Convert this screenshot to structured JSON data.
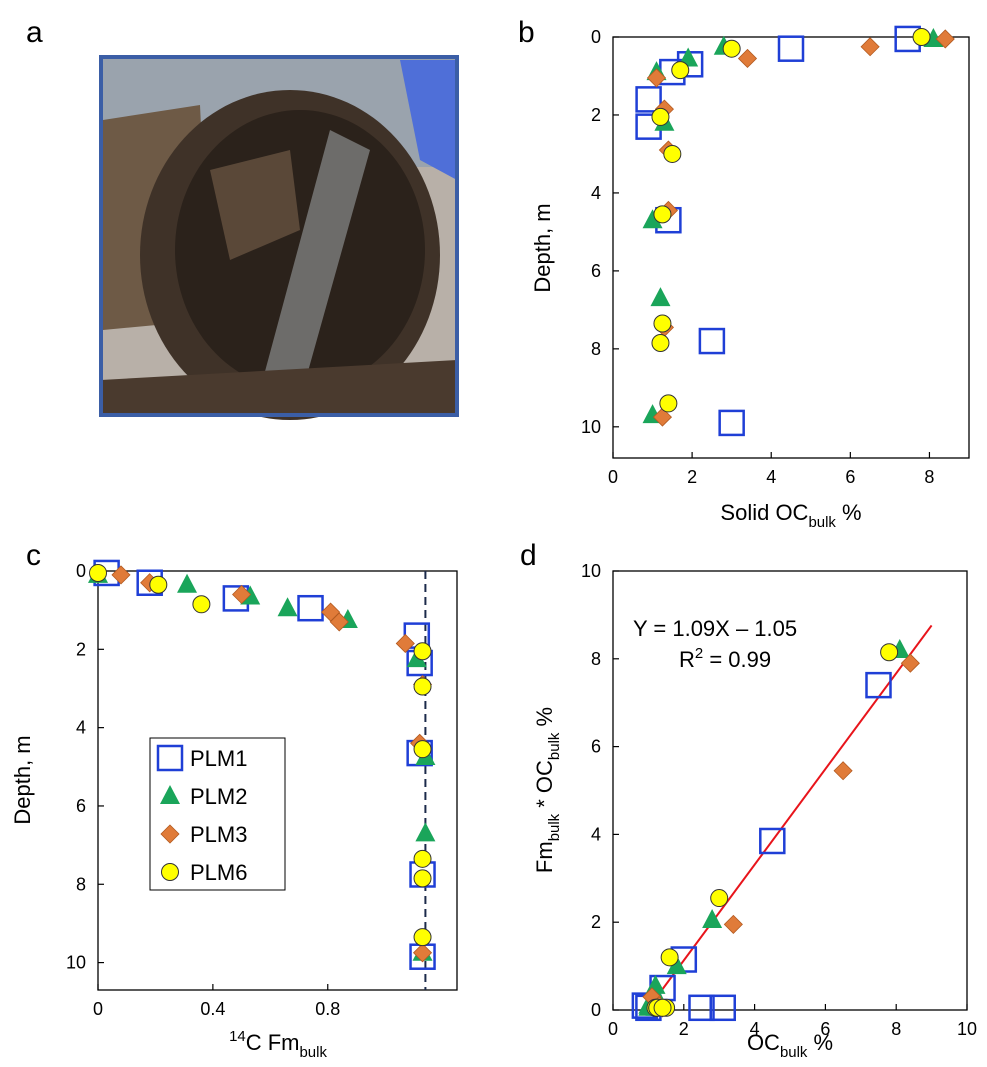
{
  "photo_panel": {
    "label": "a"
  },
  "chart_data": [
    {
      "type": "scatter",
      "label": "b",
      "x_label": [
        {
          "text": "Solid OC"
        },
        {
          "text": "bulk",
          "sub": true
        },
        {
          "text": " %"
        }
      ],
      "y_label": [
        {
          "text": "Depth, m"
        }
      ],
      "xlim": [
        0,
        9
      ],
      "xticks": [
        0,
        2,
        4,
        6,
        8
      ],
      "ylim": [
        0,
        10.8
      ],
      "yticks": [
        0,
        2,
        4,
        6,
        8,
        10
      ],
      "y_reversed": true,
      "series": [
        {
          "name": "PLM1",
          "color": "#1f3fd6",
          "marker": "square",
          "x": [
            7.45,
            4.5,
            1.5,
            1.95,
            0.9,
            0.9,
            1.4,
            2.5,
            3.0
          ],
          "values": [
            0.05,
            0.3,
            0.9,
            0.7,
            1.6,
            2.3,
            4.7,
            7.8,
            9.9
          ]
        },
        {
          "name": "PLM2",
          "color": "#1aa55a",
          "marker": "triangle",
          "x": [
            8.1,
            2.8,
            1.9,
            1.1,
            1.3,
            1.0,
            1.2,
            1.0
          ],
          "values": [
            0.05,
            0.25,
            0.55,
            0.9,
            2.2,
            4.7,
            6.7,
            9.7
          ]
        },
        {
          "name": "PLM3",
          "color": "#e07b39",
          "marker": "diamond",
          "x": [
            8.4,
            6.5,
            3.4,
            1.1,
            1.3,
            1.4,
            1.4,
            1.3,
            1.25
          ],
          "values": [
            0.05,
            0.25,
            0.55,
            1.05,
            1.85,
            2.9,
            4.45,
            7.45,
            9.75
          ]
        },
        {
          "name": "PLM6",
          "color": "#ffff00",
          "marker": "circle",
          "x": [
            7.8,
            3.0,
            1.7,
            1.2,
            1.5,
            1.25,
            1.25,
            1.2,
            1.4
          ],
          "values": [
            0.0,
            0.3,
            0.85,
            2.05,
            3.0,
            4.55,
            7.35,
            7.85,
            9.4
          ]
        }
      ]
    },
    {
      "type": "scatter",
      "label": "c",
      "x_label": [
        {
          "text": "14",
          "sup": true
        },
        {
          "text": "C Fm"
        },
        {
          "text": "bulk",
          "sub": true
        }
      ],
      "y_label": [
        {
          "text": "Depth, m"
        }
      ],
      "xlim": [
        0,
        1.25
      ],
      "xticks": [
        0,
        0.4,
        0.8
      ],
      "ylim": [
        0,
        10.7
      ],
      "yticks": [
        0,
        2,
        4,
        6,
        8,
        10
      ],
      "y_reversed": true,
      "ref_line_x": 1.14,
      "ref_line_color": "#1b2a4a",
      "legend": true,
      "legend_position": "center-left",
      "series": [
        {
          "name": "PLM1",
          "color": "#1f3fd6",
          "marker": "square",
          "x": [
            0.03,
            0.18,
            0.48,
            0.74,
            1.11,
            1.12,
            1.12,
            1.13,
            1.13
          ],
          "values": [
            0.05,
            0.3,
            0.7,
            0.95,
            1.65,
            2.35,
            4.65,
            7.75,
            9.85
          ]
        },
        {
          "name": "PLM2",
          "color": "#1aa55a",
          "marker": "triangle",
          "x": [
            0.0,
            0.31,
            0.53,
            0.66,
            0.87,
            1.11,
            1.14,
            1.14,
            1.13
          ],
          "values": [
            0.1,
            0.35,
            0.65,
            0.95,
            1.25,
            2.25,
            4.75,
            6.7,
            9.75
          ]
        },
        {
          "name": "PLM3",
          "color": "#e07b39",
          "marker": "diamond",
          "x": [
            0.08,
            0.18,
            0.5,
            0.81,
            0.84,
            1.07,
            1.13,
            1.12,
            1.13
          ],
          "values": [
            0.1,
            0.3,
            0.6,
            1.05,
            1.3,
            1.85,
            2.9,
            4.4,
            9.75
          ]
        },
        {
          "name": "PLM6",
          "color": "#ffff00",
          "marker": "circle",
          "x": [
            0.0,
            0.21,
            0.36,
            1.13,
            1.13,
            1.13,
            1.13,
            1.13,
            1.13
          ],
          "values": [
            0.05,
            0.35,
            0.85,
            2.05,
            2.95,
            4.55,
            7.35,
            7.85,
            9.35
          ]
        }
      ]
    },
    {
      "type": "scatter",
      "label": "d",
      "x_label": [
        {
          "text": "OC"
        },
        {
          "text": "bulk",
          "sub": true
        },
        {
          "text": " %"
        }
      ],
      "y_label": [
        {
          "text": "Fm"
        },
        {
          "text": "bulk",
          "sub": true
        },
        {
          "text": " * OC"
        },
        {
          "text": "bulk",
          "sub": true
        },
        {
          "text": " %"
        }
      ],
      "xlim": [
        0,
        10
      ],
      "xticks": [
        0,
        2,
        4,
        6,
        8,
        10
      ],
      "ylim": [
        0,
        10
      ],
      "yticks": [
        0,
        2,
        4,
        6,
        8,
        10
      ],
      "equation": "Y = 1.09X – 1.05",
      "r2_label": [
        {
          "text": "R"
        },
        {
          "text": "2",
          "sup": true
        },
        {
          "text": " = 0.99"
        }
      ],
      "fit": {
        "slope": 1.09,
        "intercept": -1.05,
        "x_range": [
          1,
          9
        ],
        "color": "#e8141b"
      },
      "series": [
        {
          "name": "PLM1",
          "color": "#1f3fd6",
          "marker": "square",
          "x": [
            7.5,
            4.5,
            2.0,
            1.4,
            0.9,
            1.0,
            2.5,
            3.1
          ],
          "values": [
            7.4,
            3.85,
            1.15,
            0.5,
            0.1,
            0.05,
            0.05,
            0.05
          ]
        },
        {
          "name": "PLM2",
          "color": "#1aa55a",
          "marker": "triangle",
          "x": [
            8.1,
            2.8,
            1.8,
            1.2,
            1.3,
            1.0,
            1.2,
            1.0
          ],
          "values": [
            8.2,
            2.05,
            1.0,
            0.55,
            0.2,
            0.1,
            0.05,
            0.05
          ]
        },
        {
          "name": "PLM3",
          "color": "#e07b39",
          "marker": "diamond",
          "x": [
            8.4,
            6.5,
            3.4,
            1.1,
            1.3,
            1.4,
            1.4,
            1.25
          ],
          "values": [
            7.9,
            5.45,
            1.95,
            0.3,
            0.1,
            0.05,
            0.05,
            0.05
          ]
        },
        {
          "name": "PLM6",
          "color": "#ffff00",
          "marker": "circle",
          "x": [
            7.8,
            3.0,
            1.6,
            1.2,
            1.5,
            1.25,
            1.25,
            1.4
          ],
          "values": [
            8.15,
            2.55,
            1.2,
            0.05,
            0.05,
            0.05,
            0.05,
            0.05
          ]
        }
      ]
    }
  ]
}
